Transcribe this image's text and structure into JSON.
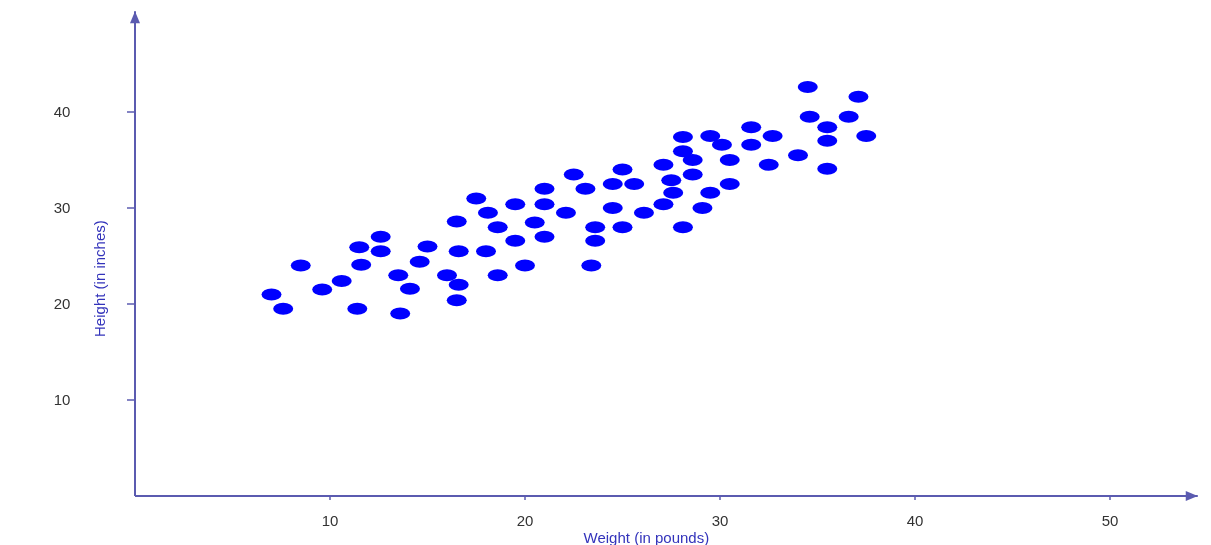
{
  "chart_data": {
    "type": "scatter",
    "xlabel": "Weight (in pounds)",
    "ylabel": "Height (in inches)",
    "xlim": [
      0,
      54.5
    ],
    "ylim": [
      0,
      50.5
    ],
    "xticks": [
      10,
      20,
      30,
      40,
      50
    ],
    "yticks": [
      10,
      20,
      30,
      40
    ],
    "grid": false,
    "marker": "circle",
    "series": [
      {
        "color": "#0000ff",
        "x": [
          7.0,
          7.6,
          8.5,
          9.6,
          10.6,
          11.4,
          11.5,
          11.6,
          12.6,
          12.6,
          13.5,
          13.6,
          14.1,
          14.6,
          15.0,
          16.0,
          16.5,
          16.6,
          16.5,
          16.6,
          17.5,
          18.1,
          18.0,
          18.6,
          18.6,
          19.5,
          19.5,
          20.0,
          20.5,
          21.0,
          21.0,
          21.0,
          22.1,
          22.5,
          23.1,
          23.6,
          23.6,
          23.4,
          24.5,
          24.5,
          25.0,
          25.0,
          25.6,
          26.1,
          27.1,
          27.5,
          27.1,
          27.6,
          28.1,
          28.1,
          28.1,
          28.6,
          28.6,
          29.1,
          29.5,
          29.5,
          30.1,
          30.5,
          30.5,
          31.6,
          31.6,
          32.7,
          32.5,
          34.0,
          34.5,
          34.6,
          35.5,
          35.5,
          35.5,
          36.6,
          37.1,
          37.5
        ],
        "values": [
          21.0,
          19.5,
          24.0,
          21.5,
          22.4,
          19.5,
          25.9,
          24.1,
          27.0,
          25.5,
          23.0,
          19.0,
          21.6,
          24.4,
          26.0,
          23.0,
          28.6,
          22.0,
          20.4,
          25.5,
          31.0,
          29.5,
          25.5,
          28.0,
          23.0,
          30.4,
          26.6,
          24.0,
          28.5,
          32.0,
          30.4,
          27.0,
          29.5,
          33.5,
          32.0,
          28.0,
          26.6,
          24.0,
          32.5,
          30.0,
          34.0,
          28.0,
          32.5,
          29.5,
          34.5,
          32.9,
          30.4,
          31.6,
          37.4,
          35.9,
          28.0,
          35.0,
          33.5,
          30.0,
          37.5,
          31.6,
          36.6,
          35.0,
          32.5,
          38.4,
          36.6,
          37.5,
          34.5,
          35.5,
          42.6,
          39.5,
          38.4,
          37.0,
          34.1,
          39.5,
          41.6,
          37.5
        ]
      }
    ]
  }
}
